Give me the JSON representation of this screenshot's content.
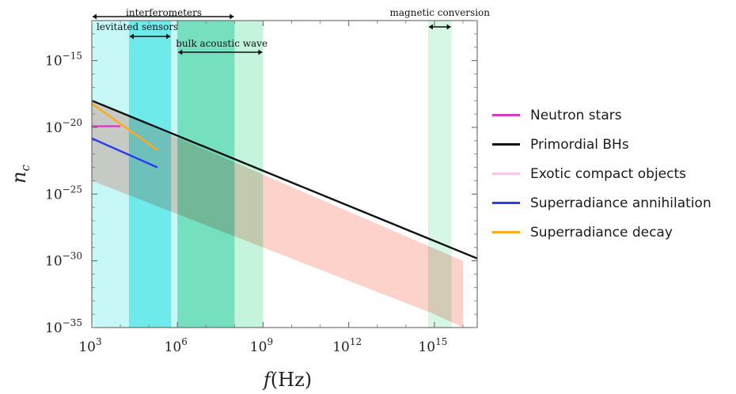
{
  "chart_data": {
    "type": "line",
    "xscale": "log",
    "yscale": "log",
    "xlim": [
      1000,
      3.16e+16
    ],
    "ylim": [
      1e-35,
      1e-12
    ],
    "xlabel": "f(Hz)",
    "ylabel": "n_c",
    "x_ticks": [
      {
        "base": "10",
        "exp": "3",
        "value": 1000
      },
      {
        "base": "10",
        "exp": "6",
        "value": 1000000
      },
      {
        "base": "10",
        "exp": "9",
        "value": 1000000000
      },
      {
        "base": "10",
        "exp": "12",
        "value": 1000000000000
      },
      {
        "base": "10",
        "exp": "15",
        "value": 1000000000000000
      }
    ],
    "y_ticks": [
      {
        "base": "10",
        "exp": "−15",
        "value": 1e-15
      },
      {
        "base": "10",
        "exp": "−20",
        "value": 1e-20
      },
      {
        "base": "10",
        "exp": "−25",
        "value": 1e-25
      },
      {
        "base": "10",
        "exp": "−30",
        "value": 1e-30
      },
      {
        "base": "10",
        "exp": "−35",
        "value": 1e-35
      }
    ],
    "bands": [
      {
        "label": "interferometers",
        "x": [
          1000,
          100000000
        ],
        "color": "#c8f7f7"
      },
      {
        "label": "levitated sensors",
        "x": [
          20000,
          600000
        ],
        "color": "#8ef2f2"
      },
      {
        "label": "bulk acoustic wave",
        "x": [
          1000000,
          1000000000
        ],
        "color": "#c4f4dc"
      },
      {
        "label": "magnetic conversion",
        "x": [
          600000000000000,
          4000000000000000
        ],
        "color": "#d6f7e4"
      }
    ],
    "band_overlap": {
      "x": [
        1000000,
        100000000
      ],
      "color": "#8de6d2"
    },
    "exotic_region": {
      "color": "#fcd2cb",
      "x": [
        1000,
        1000000000000000,
        10000000000000000,
        10000000000000000,
        1000
      ],
      "y": [
        1e-24,
        1e-34,
        1e-35,
        1e-30,
        1e-18
      ]
    },
    "series": [
      {
        "name": "Neutron stars",
        "color": "#d93bbf",
        "x": [
          1000,
          10000
        ],
        "y": [
          1.2e-20,
          1.2e-20
        ]
      },
      {
        "name": "Primordial BHs",
        "color": "#111111",
        "x": [
          1000,
          3.16e+16
        ],
        "y": [
          1e-18,
          1.5e-30
        ]
      },
      {
        "name": "Exotic compact objects",
        "color": "#f9c6e6"
      },
      {
        "name": "Superradiance annihilation",
        "color": "#2a3cf0",
        "x": [
          1000,
          200000
        ],
        "y": [
          1.5e-21,
          1e-23
        ]
      },
      {
        "name": "Superradiance decay",
        "color": "#ffa91e",
        "x": [
          1000,
          200000
        ],
        "y": [
          6e-19,
          2e-22
        ]
      }
    ],
    "legend_position": "right"
  }
}
